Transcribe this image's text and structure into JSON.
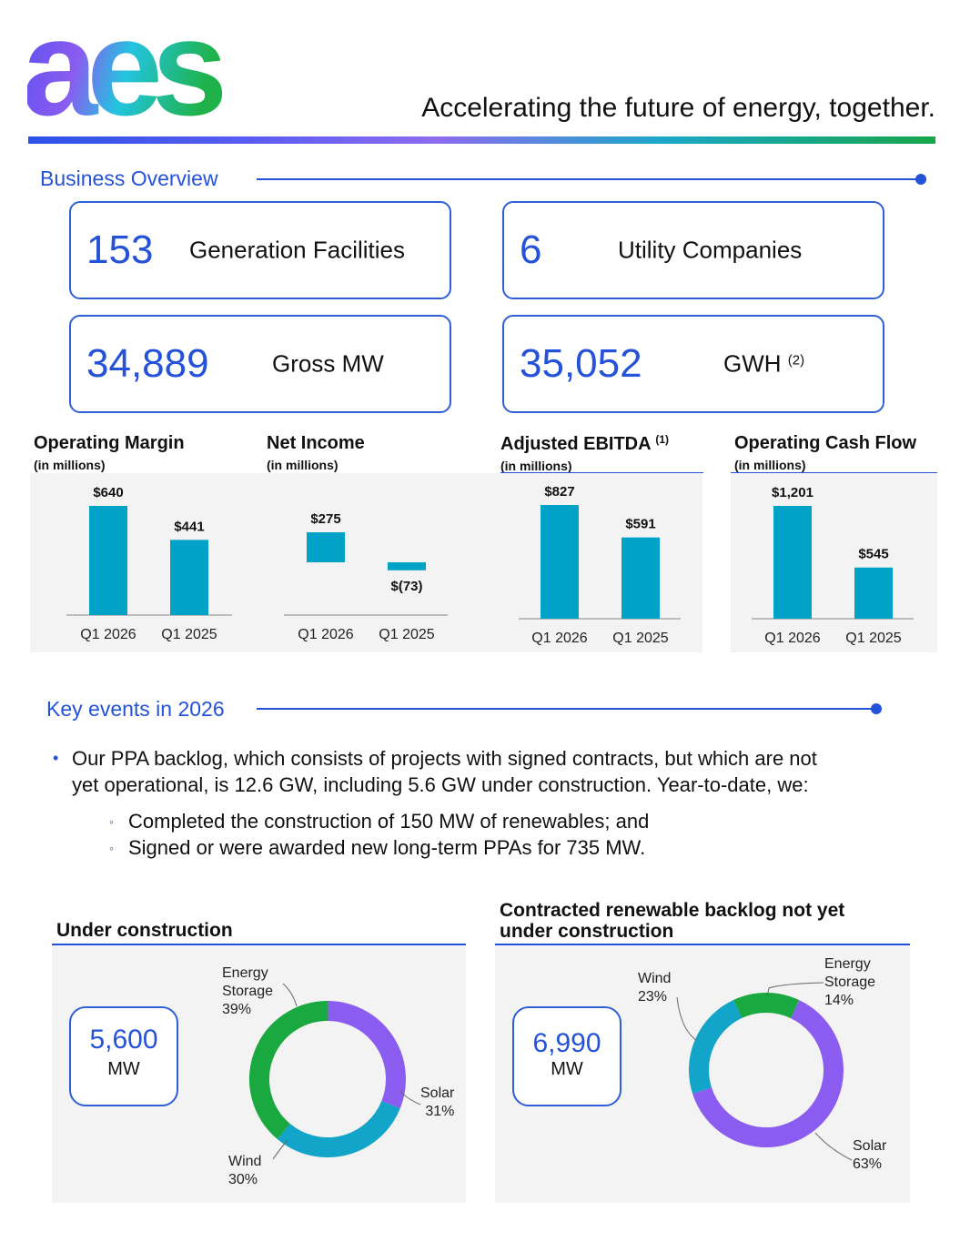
{
  "header": {
    "logo_text": "aes",
    "tagline": "Accelerating the future of energy, together."
  },
  "business_overview": {
    "title": "Business Overview",
    "stats": [
      {
        "value": "153",
        "label": "Generation Facilities",
        "note": ""
      },
      {
        "value": "6",
        "label": "Utility Companies",
        "note": ""
      },
      {
        "value": "34,889",
        "label": "Gross MW",
        "note": ""
      },
      {
        "value": "35,052",
        "label": "GWH",
        "note": "(2)"
      }
    ]
  },
  "financials": [
    {
      "title": "Operating Margin",
      "note": "",
      "subtitle": "(in millions)"
    },
    {
      "title": "Net Income",
      "note": "",
      "subtitle": "(in millions)"
    },
    {
      "title": "Adjusted EBITDA",
      "note": "(1)",
      "subtitle": "(in millions)"
    },
    {
      "title": "Operating Cash Flow",
      "note": "",
      "subtitle": "(in millions)"
    }
  ],
  "chart_data": [
    {
      "type": "bar",
      "title": "Operating Margin",
      "categories": [
        "Q1 2026",
        "Q1 2025"
      ],
      "values": [
        640,
        441
      ],
      "data_labels": [
        "$640",
        "$441"
      ],
      "color": "#00a3c7"
    },
    {
      "type": "bar",
      "title": "Net Income",
      "categories": [
        "Q1 2026",
        "Q1 2025"
      ],
      "values": [
        275,
        -73
      ],
      "data_labels": [
        "$275",
        "$(73)"
      ],
      "color": "#00a3c7"
    },
    {
      "type": "bar",
      "title": "Adjusted EBITDA",
      "categories": [
        "Q1 2026",
        "Q1 2025"
      ],
      "values": [
        827,
        591
      ],
      "data_labels": [
        "$827",
        "$591"
      ],
      "color": "#00a3c7"
    },
    {
      "type": "bar",
      "title": "Operating Cash Flow",
      "categories": [
        "Q1 2026",
        "Q1 2025"
      ],
      "values": [
        1201,
        545
      ],
      "data_labels": [
        "$1,201",
        "$545"
      ],
      "color": "#00a3c7"
    },
    {
      "type": "pie",
      "title": "Under construction",
      "center_value": "5,600",
      "center_unit": "MW",
      "slices": [
        {
          "name": "Energy Storage",
          "value": 39,
          "label": "39%",
          "color": "#1aa840"
        },
        {
          "name": "Solar",
          "value": 31,
          "label": "31%",
          "color": "#8b5cf0"
        },
        {
          "name": "Wind",
          "value": 30,
          "label": "30%",
          "color": "#12a4c9"
        }
      ]
    },
    {
      "type": "pie",
      "title": "Contracted renewable backlog not yet under construction",
      "center_value": "6,990",
      "center_unit": "MW",
      "slices": [
        {
          "name": "Energy Storage",
          "value": 14,
          "label": "14%",
          "color": "#1aa840"
        },
        {
          "name": "Solar",
          "value": 63,
          "label": "63%",
          "color": "#8b5cf0"
        },
        {
          "name": "Wind",
          "value": 23,
          "label": "23%",
          "color": "#12a4c9"
        }
      ]
    }
  ],
  "key_events": {
    "title": "Key events in 2026",
    "bullet_line1": "Our PPA backlog, which consists of projects with signed contracts, but which are not",
    "bullet_line2": "yet operational, is 12.6 GW, including 5.6 GW under construction. Year-to-date, we:",
    "sub_bullets": [
      "Completed the construction of 150 MW of renewables; and",
      "Signed or were awarded new long-term PPAs for 735 MW."
    ]
  },
  "donuts": {
    "left": {
      "title": "Under construction",
      "value": "5,600",
      "unit": "MW",
      "labels": [
        {
          "line1": "Energy",
          "line2": "Storage",
          "pct": "39%"
        },
        {
          "line1": "Solar",
          "pct": "31%"
        },
        {
          "line1": "Wind",
          "pct": "30%"
        }
      ]
    },
    "right": {
      "title_line1": "Contracted renewable backlog not yet",
      "title_line2": "under construction",
      "value": "6,990",
      "unit": "MW",
      "labels": [
        {
          "line1": "Energy",
          "line2": "Storage",
          "pct": "14%"
        },
        {
          "line1": "Wind",
          "pct": "23%"
        },
        {
          "line1": "Solar",
          "pct": "63%"
        }
      ]
    }
  },
  "colors": {
    "accent": "#2452d8",
    "bar": "#00a3c7",
    "storage": "#1aa840",
    "solar": "#8b5cf0",
    "wind": "#12a4c9"
  }
}
